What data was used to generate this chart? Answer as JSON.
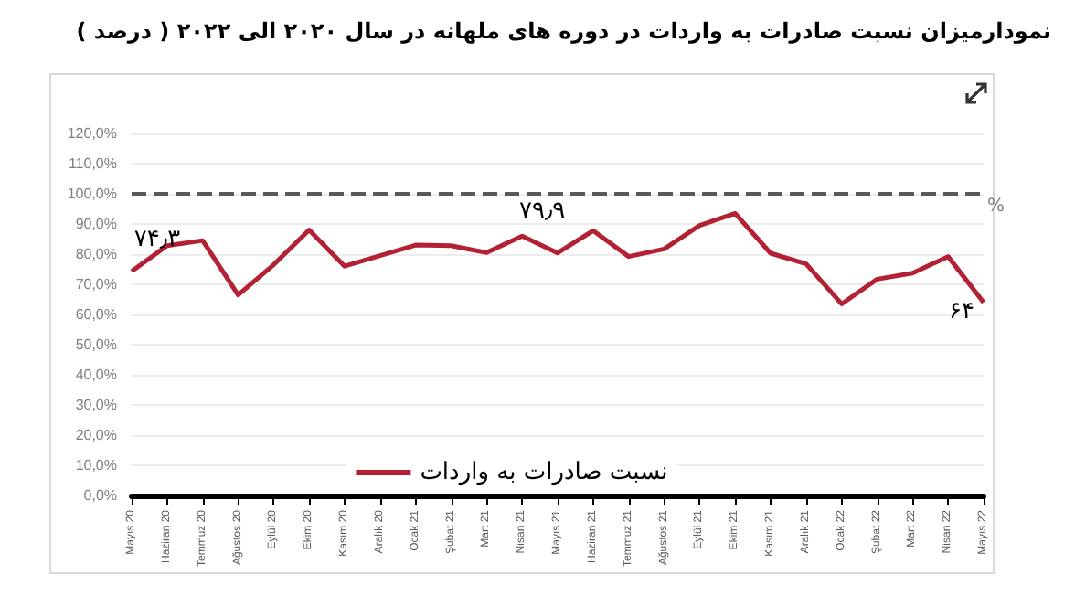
{
  "chart_data": {
    "type": "line",
    "title": "نمودارمیزان نسبت صادرات به واردات در دوره های ملهانه در سال ۲۰۲۰ الی ۲۰۲۲ ( درصد )",
    "categories": [
      "Mayıs 20",
      "Haziran 20",
      "Temmuz 20",
      "Ağustos 20",
      "Eylül 20",
      "Ekim 20",
      "Kasım 20",
      "Aralık 20",
      "Ocak 21",
      "Şubat 21",
      "Mart 21",
      "Nisan 21",
      "Mayıs 21",
      "Haziran 21",
      "Temmuz 21",
      "Ağustos 21",
      "Eylül 21",
      "Ekim 21",
      "Kasım 21",
      "Aralık 21",
      "Ocak 22",
      "Şubat 22",
      "Mart 22",
      "Nisan 22",
      "Mayıs 22"
    ],
    "series": [
      {
        "name": "نسبت صادرات به واردات",
        "color": "#b22234",
        "values": [
          74.3,
          82.8,
          84.5,
          66.5,
          76.5,
          88,
          76,
          79.5,
          83,
          82.8,
          80.5,
          86,
          80.4,
          87.8,
          79.2,
          81.7,
          89.5,
          93.5,
          80.3,
          76.8,
          63.5,
          71.7,
          73.7,
          79.2,
          64
        ],
        "value_labels": [
          "۷۴٫۳",
          null,
          null,
          null,
          null,
          null,
          null,
          null,
          null,
          null,
          null,
          null,
          null,
          null,
          null,
          null,
          null,
          null,
          null,
          null,
          null,
          null,
          null,
          null,
          "۶۴"
        ]
      }
    ],
    "ylim": [
      0,
      120
    ],
    "yticks": [
      {
        "value": 0,
        "label": "0,0%"
      },
      {
        "value": 10,
        "label": "10,0%"
      },
      {
        "value": 20,
        "label": "20,0%"
      },
      {
        "value": 30,
        "label": "30,0%"
      },
      {
        "value": 40,
        "label": "40,0%"
      },
      {
        "value": 50,
        "label": "50,0%"
      },
      {
        "value": 60,
        "label": "60,0%"
      },
      {
        "value": 70,
        "label": "70,0%"
      },
      {
        "value": 80,
        "label": "80,0%"
      },
      {
        "value": 90,
        "label": "90,0%"
      },
      {
        "value": 100,
        "label": "100,0%"
      },
      {
        "value": 110,
        "label": "110,0%"
      },
      {
        "value": 120,
        "label": "120,0%"
      }
    ],
    "ref_lines": [
      {
        "axis": "y",
        "value": 100,
        "color": "#595959",
        "line_style": "dashed"
      }
    ],
    "annotations": [
      "۷۹٫۹",
      "%"
    ],
    "grid": "y",
    "legend": "bottom",
    "marker": "none",
    "line_style": "solid"
  }
}
